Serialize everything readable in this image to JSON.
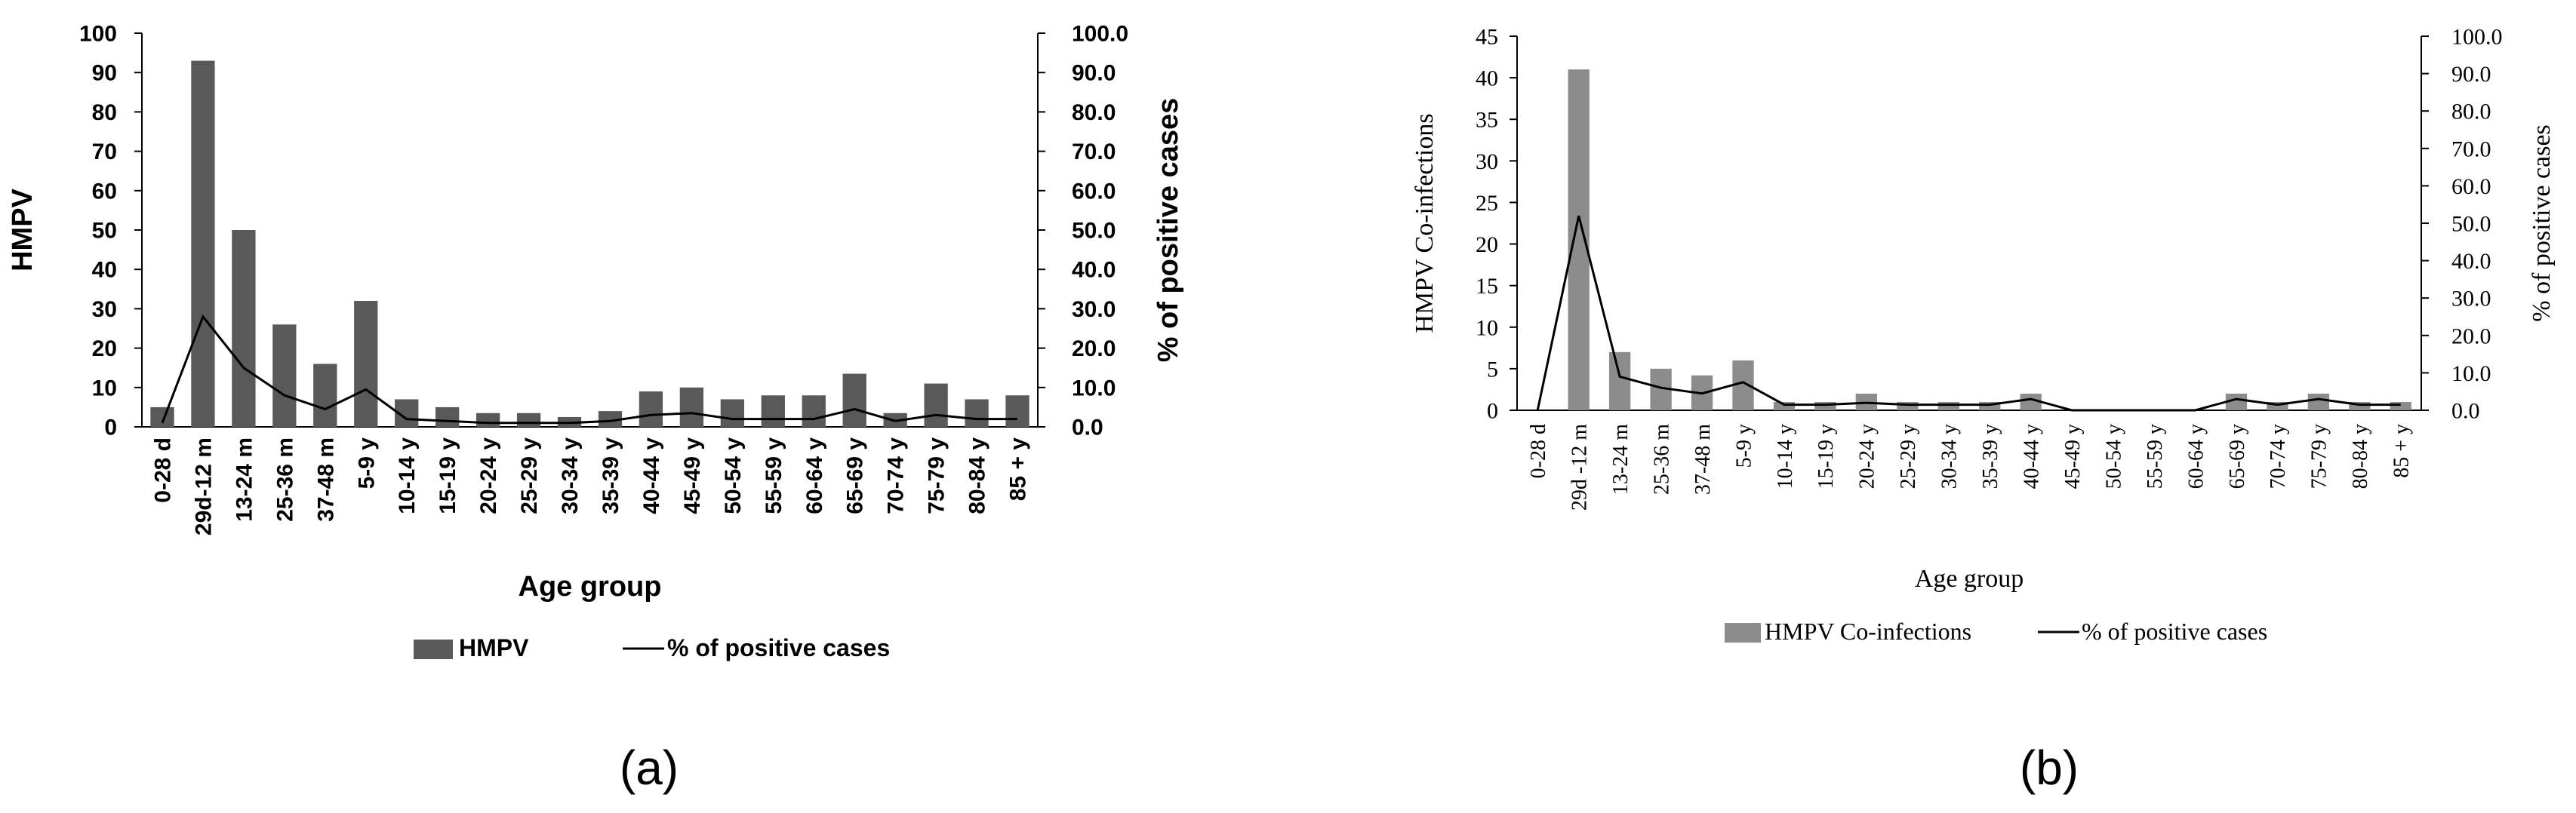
{
  "chart_data": [
    {
      "type": "bar+line",
      "panel_label": "(a)",
      "xlabel": "Age group",
      "ylabel": "HMPV",
      "y2label": "% of positive cases",
      "ylim": [
        0,
        100
      ],
      "y_ticks": [
        0,
        10,
        20,
        30,
        40,
        50,
        60,
        70,
        80,
        90,
        100
      ],
      "y2lim": [
        0,
        100
      ],
      "y2_ticks": [
        "0.0",
        "10.0",
        "20.0",
        "30.0",
        "40.0",
        "50.0",
        "60.0",
        "70.0",
        "80.0",
        "90.0",
        "100.0"
      ],
      "categories": [
        "0-28 d",
        "29d-12 m",
        "13-24 m",
        "25-36 m",
        "37-48 m",
        "5-9 y",
        "10-14 y",
        "15-19 y",
        "20-24 y",
        "25-29 y",
        "30-34 y",
        "35-39 y",
        "40-44 y",
        "45-49 y",
        "50-54 y",
        "55-59 y",
        "60-64 y",
        "65-69 y",
        "70-74 y",
        "75-79 y",
        "80-84 y",
        "85 + y"
      ],
      "series": [
        {
          "name": "HMPV",
          "kind": "bar",
          "axis": "left",
          "color": "#595959",
          "values": [
            5,
            93,
            50,
            26,
            16,
            32,
            7,
            5,
            3.5,
            3.5,
            2.5,
            4,
            9,
            10,
            7,
            8,
            8,
            13.5,
            3.5,
            11,
            7,
            8
          ]
        },
        {
          "name": "% of positive cases",
          "kind": "line",
          "axis": "right",
          "color": "#000000",
          "values": [
            1,
            28,
            15,
            8,
            4.5,
            9.5,
            2,
            1.5,
            1,
            1,
            1,
            1.5,
            3,
            3.5,
            2,
            2,
            2,
            4.5,
            1.5,
            3,
            2,
            2
          ]
        }
      ],
      "legend": [
        "HMPV",
        "% of positive cases"
      ]
    },
    {
      "type": "bar+line",
      "panel_label": "(b)",
      "xlabel": "Age group",
      "ylabel": "HMPV Co-infections",
      "y2label": "% of positive cases",
      "ylim": [
        0,
        45
      ],
      "y_ticks": [
        0,
        5,
        10,
        15,
        20,
        25,
        30,
        35,
        40,
        45
      ],
      "y2lim": [
        0,
        100
      ],
      "y2_ticks": [
        "0.0",
        "10.0",
        "20.0",
        "30.0",
        "40.0",
        "50.0",
        "60.0",
        "70.0",
        "80.0",
        "90.0",
        "100.0"
      ],
      "categories": [
        "0-28 d",
        "29d -12 m",
        "13-24 m",
        "25-36 m",
        "37-48 m",
        "5-9 y",
        "10-14 y",
        "15-19 y",
        "20-24 y",
        "25-29 y",
        "30-34 y",
        "35-39 y",
        "40-44 y",
        "45-49 y",
        "50-54 y",
        "55-59 y",
        "60-64 y",
        "65-69 y",
        "70-74 y",
        "75-79 y",
        "80-84 y",
        "85 + y"
      ],
      "series": [
        {
          "name": "HMPV Co-infections",
          "kind": "bar",
          "axis": "left",
          "color": "#8c8c8c",
          "values": [
            0,
            41,
            7,
            5,
            4.2,
            6,
            1,
            1,
            2,
            1,
            1,
            1,
            2,
            0,
            0,
            0,
            0,
            2,
            1,
            2,
            1,
            1
          ]
        },
        {
          "name": "% of positive cases",
          "kind": "line",
          "axis": "right",
          "color": "#000000",
          "values": [
            0,
            52,
            9,
            6,
            4.5,
            7.5,
            1.5,
            1.5,
            2,
            1.5,
            1.5,
            1.5,
            3,
            0,
            0,
            0,
            0,
            3,
            1.5,
            3,
            1.5,
            1.5
          ]
        }
      ],
      "legend": [
        "HMPV Co-infections",
        "% of positive cases"
      ]
    }
  ]
}
